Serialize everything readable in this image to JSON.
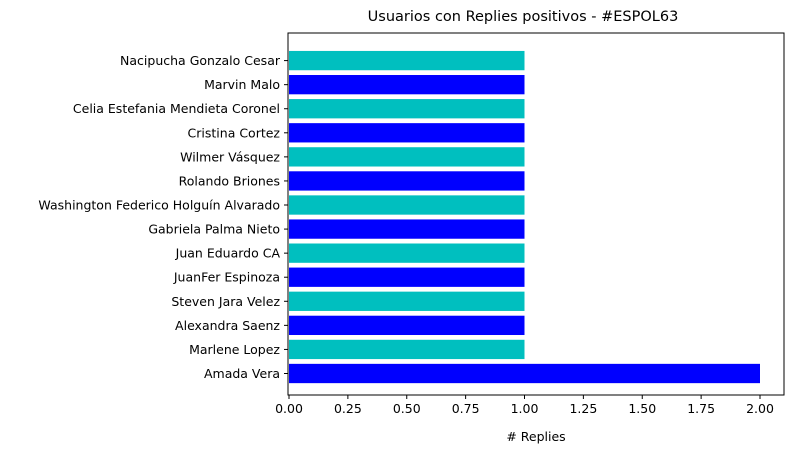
{
  "chart_data": {
    "type": "bar",
    "orientation": "horizontal",
    "title": "Usuarios con Replies positivos - #ESPOL63",
    "xlabel": "# Replies",
    "ylabel": "",
    "xlim": [
      0,
      2.1
    ],
    "xticks": [
      "0.00",
      "0.25",
      "0.50",
      "0.75",
      "1.00",
      "1.25",
      "1.50",
      "1.75",
      "2.00"
    ],
    "grid": false,
    "categories": [
      "Amada Vera",
      "Marlene Lopez",
      "Alexandra Saenz",
      "Steven Jara Velez",
      "JuanFer Espinoza",
      "Juan Eduardo CA",
      "Gabriela Palma Nieto",
      "Washington Federico Holguín Alvarado",
      "Rolando Briones",
      "Wilmer Vásquez",
      "Cristina Cortez",
      "Celia Estefania Mendieta Coronel",
      "Marvin Malo",
      "Nacipucha Gonzalo Cesar"
    ],
    "values": [
      2,
      1,
      1,
      1,
      1,
      1,
      1,
      1,
      1,
      1,
      1,
      1,
      1,
      1
    ],
    "colors": [
      "#0000ff",
      "#00bfbf"
    ]
  }
}
